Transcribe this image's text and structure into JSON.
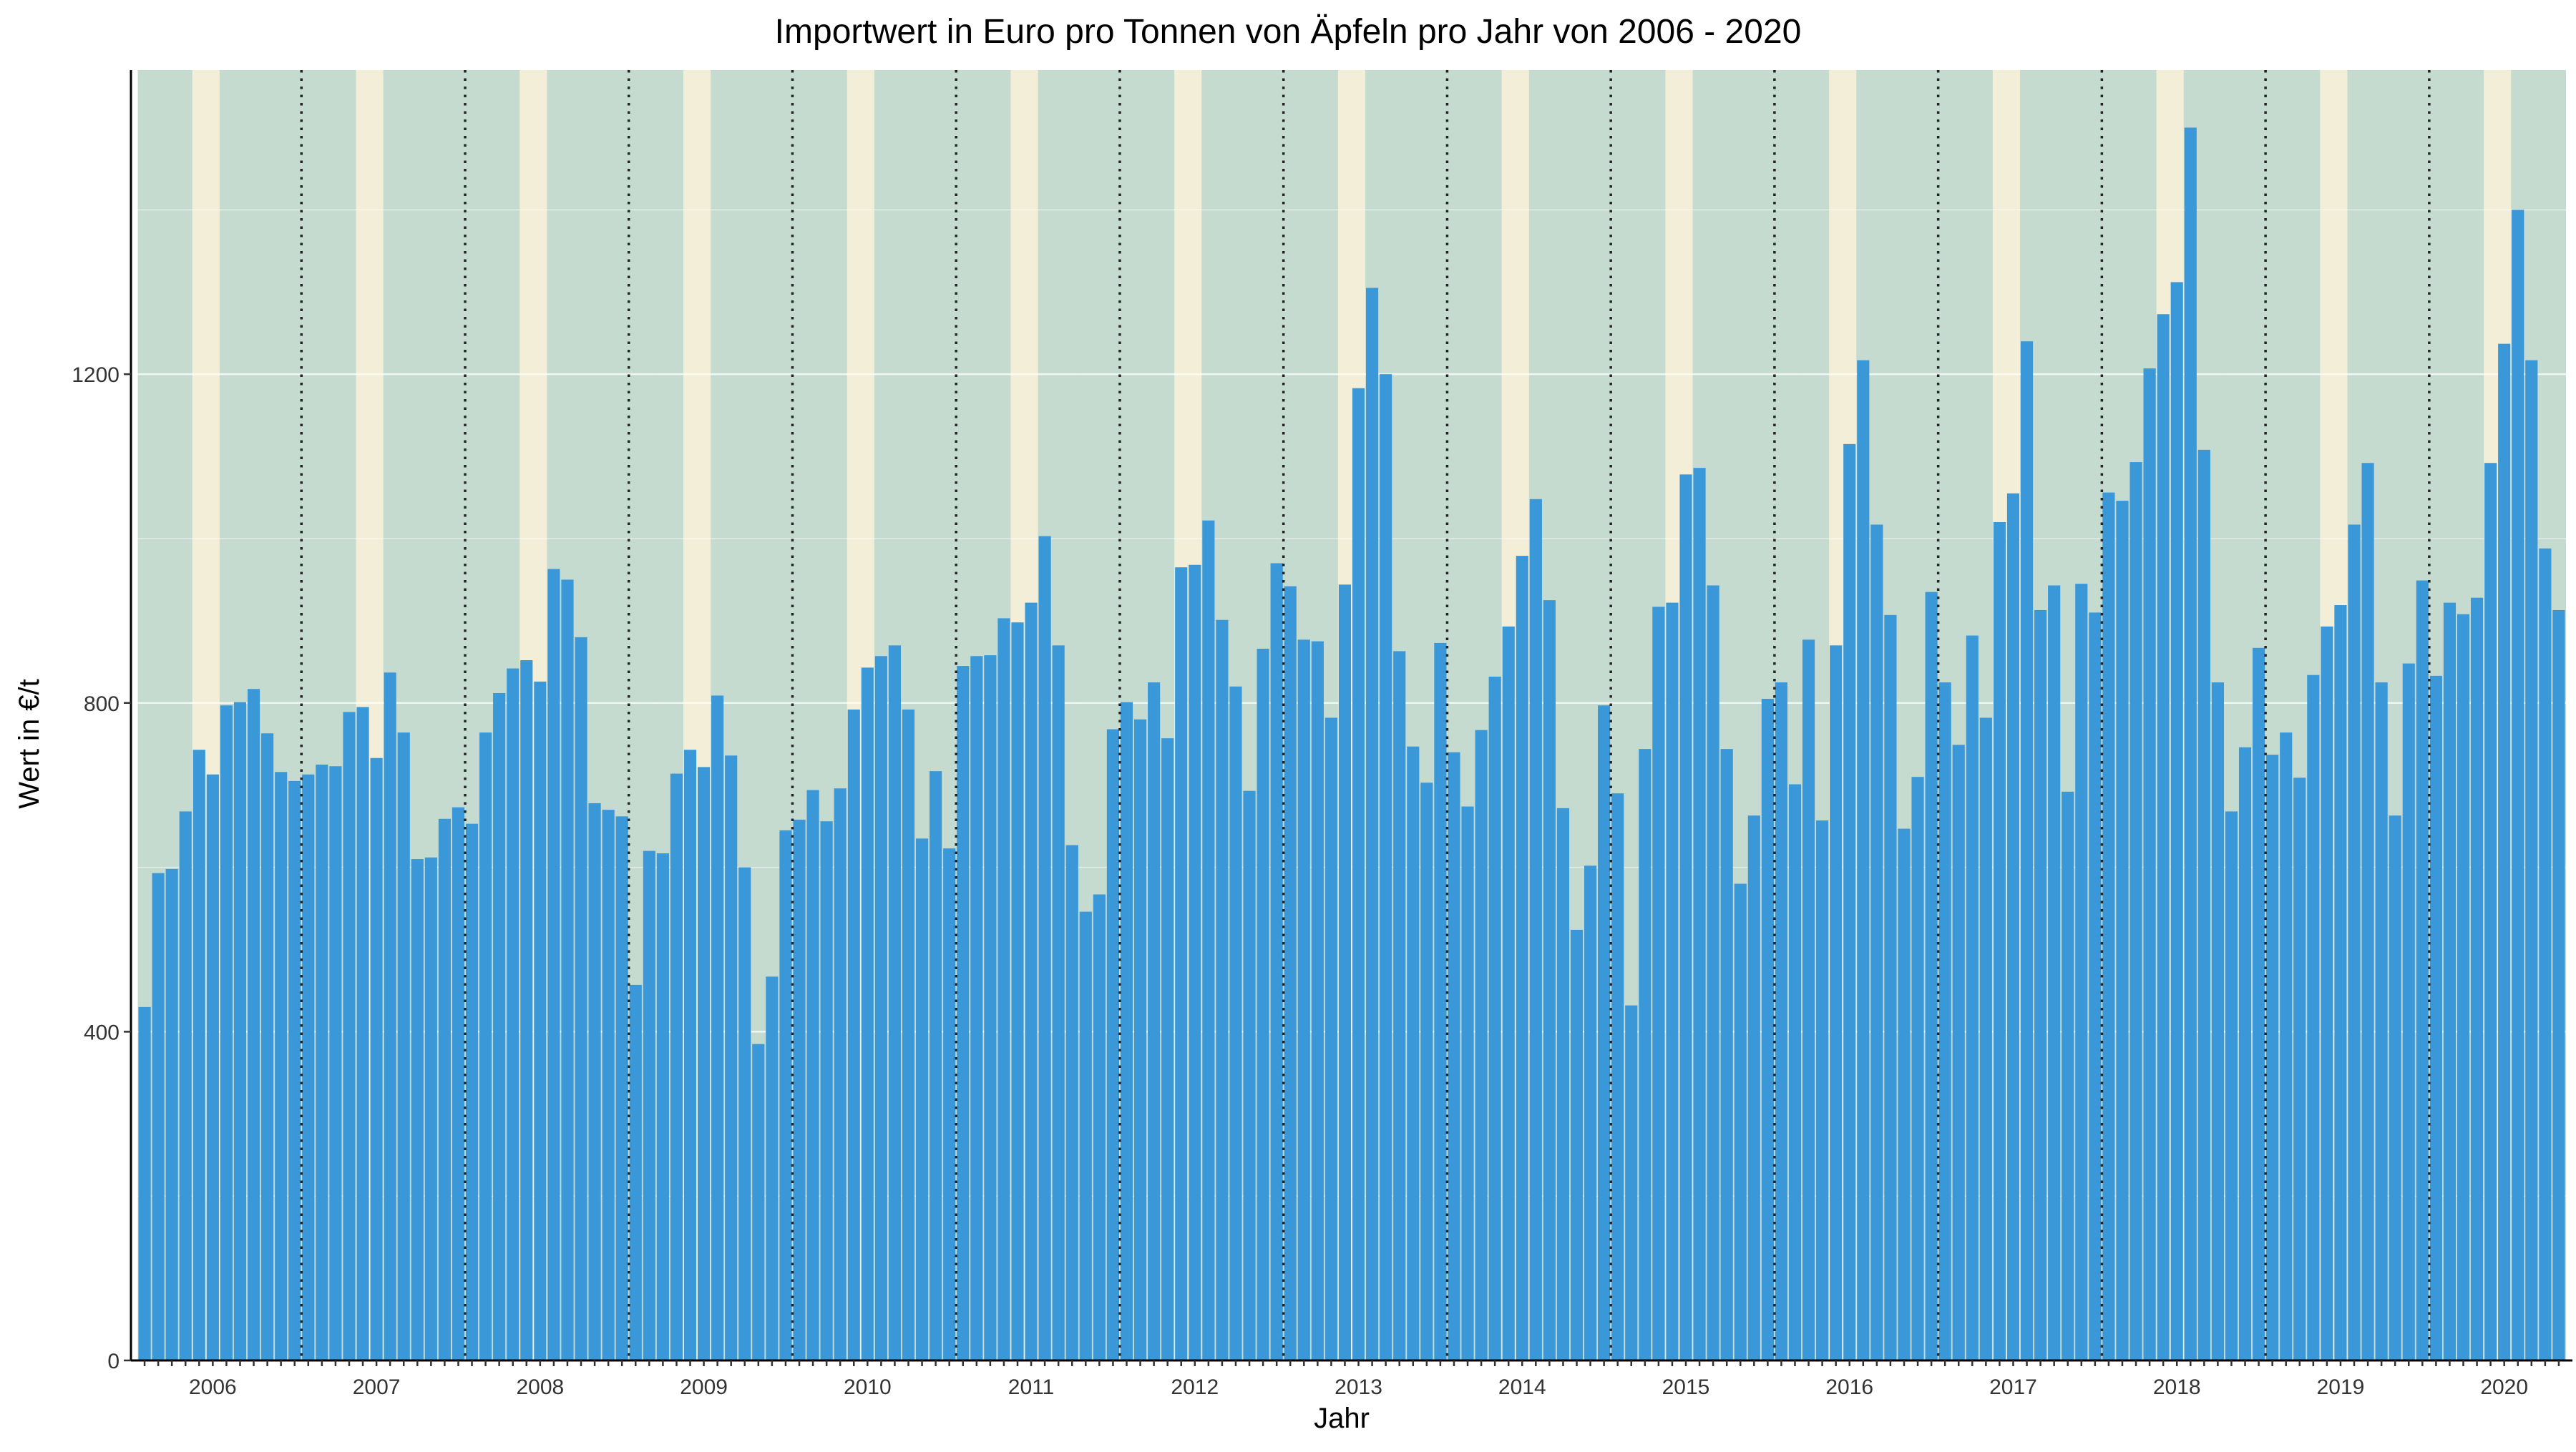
{
  "chart_data": {
    "type": "bar",
    "title": "Importwert in Euro pro Tonnen von Äpfeln pro Jahr von 2006 - 2020",
    "xlabel": "Jahr",
    "ylabel": "Wert in €/t",
    "ylim": [
      0,
      1570
    ],
    "yticks": [
      0,
      400,
      800,
      1200
    ],
    "year_labels": [
      "2006",
      "2007",
      "2008",
      "2009",
      "2010",
      "2011",
      "2012",
      "2013",
      "2014",
      "2015",
      "2016",
      "2017",
      "2018",
      "2019",
      "2020"
    ],
    "months_per_year": 12,
    "months_last_year": 10,
    "grid": true,
    "season_bands": "green Jan–Apr and Jul–Dec, yellow May–Jun",
    "year_separators": "dotted vertical lines between years",
    "colors": {
      "bar": "#3a98d9",
      "band_green": "#c5dbd0",
      "band_yellow": "#f3eed7",
      "separator": "#222222",
      "axis": "#000000"
    },
    "series": [
      {
        "values": [
          430,
          593,
          598,
          668,
          743,
          713,
          797,
          801,
          817,
          763,
          716,
          705,
          713,
          725,
          723,
          789,
          795,
          733,
          837,
          764,
          610,
          612,
          659,
          673,
          653,
          764,
          812,
          842,
          852,
          826,
          963,
          950,
          880,
          678,
          670,
          662,
          457,
          620,
          617,
          714,
          743,
          722,
          809,
          736,
          600,
          385,
          467,
          645,
          658,
          694,
          656,
          696,
          792,
          843,
          857,
          870,
          792,
          635,
          717,
          623,
          845,
          857,
          858,
          903,
          898,
          922,
          1003,
          870,
          627,
          546,
          567,
          768,
          801,
          780,
          825,
          757,
          965,
          968,
          1022,
          901,
          820,
          693,
          866,
          970,
          942,
          877,
          875,
          782,
          944,
          1183,
          1305,
          1200,
          863,
          747,
          703,
          873,
          740,
          674,
          767,
          832,
          893,
          979,
          1048,
          925,
          672,
          524,
          602,
          797,
          690,
          432,
          744,
          917,
          922,
          1078,
          1086,
          943,
          744,
          580,
          663,
          805,
          825,
          701,
          877,
          657,
          870,
          1115,
          1217,
          1017,
          907,
          647,
          710,
          935,
          825,
          749,
          882,
          782,
          1020,
          1055,
          1240,
          913,
          943,
          692,
          945,
          910,
          1056,
          1046,
          1093,
          1207,
          1273,
          1312,
          1500,
          1108,
          825,
          668,
          746,
          867,
          737,
          764,
          709,
          834,
          893,
          919,
          1017,
          1092,
          825,
          663,
          848,
          949,
          833,
          922,
          908,
          928,
          1092,
          1237,
          1400,
          1217,
          988,
          913
        ]
      }
    ]
  }
}
